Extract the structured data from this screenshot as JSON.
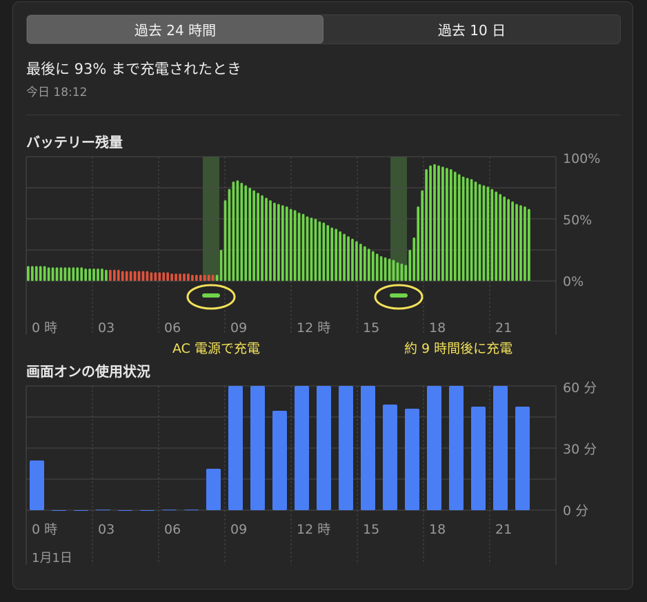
{
  "tabs": [
    {
      "label": "過去 24 時間",
      "active": true
    },
    {
      "label": "過去 10 日",
      "active": false
    }
  ],
  "last_charge": {
    "title": "最後に 93% まで充電されたとき",
    "time": "今日 18:12"
  },
  "battery_section": {
    "title": "バッテリー残量"
  },
  "usage_section": {
    "title": "画面オンの使用状況"
  },
  "annotations": {
    "ac_charge": "AC 電源で充電",
    "later_charge": "約 9 時間後に充電"
  },
  "date_label": "1月1日",
  "colors": {
    "battery_normal": "#6fd44a",
    "battery_low": "#e0533c",
    "charging_band": "#3d5a36",
    "usage_bar": "#4a7ef5",
    "highlight": "#f2e15a"
  },
  "chart_data": [
    {
      "type": "bar",
      "title": "バッテリー残量",
      "x_tick_labels": [
        "0 時",
        "03",
        "06",
        "09",
        "12 時",
        "15",
        "18",
        "21"
      ],
      "y_tick_labels": [
        "100%",
        "50%",
        "0%"
      ],
      "ylim": [
        0,
        100
      ],
      "grid": true,
      "charging_periods_hours": [
        [
          8.0,
          8.75
        ],
        [
          16.5,
          17.25
        ]
      ],
      "series": [
        {
          "values": [
            12,
            12,
            12,
            12,
            12,
            11,
            11,
            11,
            11,
            11,
            11,
            11,
            11,
            11,
            10,
            10,
            10,
            10,
            10,
            9,
            9,
            9,
            9,
            8,
            8,
            8,
            8,
            8,
            8,
            8,
            7,
            7,
            7,
            7,
            7,
            6,
            6,
            6,
            6,
            6,
            5,
            5,
            5,
            5,
            5,
            5,
            5,
            25,
            65,
            74,
            80,
            81,
            79,
            77,
            75,
            73,
            71,
            69,
            67,
            65,
            63,
            62,
            61,
            60,
            58,
            57,
            55,
            54,
            52,
            51,
            50,
            48,
            47,
            45,
            43,
            42,
            40,
            38,
            36,
            34,
            32,
            30,
            28,
            26,
            24,
            22,
            20,
            19,
            18,
            17,
            15,
            14,
            13,
            25,
            35,
            60,
            73,
            90,
            93,
            94,
            93,
            92,
            91,
            90,
            88,
            86,
            84,
            83,
            82,
            80,
            78,
            77,
            76,
            74,
            72,
            70,
            68,
            66,
            64,
            62,
            61,
            60,
            58
          ],
          "low_count": 26
        }
      ]
    },
    {
      "type": "bar",
      "title": "画面オンの使用状況",
      "x_tick_labels": [
        "0 時",
        "03",
        "06",
        "09",
        "12 時",
        "15",
        "18",
        "21"
      ],
      "y_tick_labels": [
        "60 分",
        "30 分",
        "0 分"
      ],
      "ylim": [
        0,
        60
      ],
      "grid": true,
      "series": [
        {
          "unit": "分",
          "values": [
            24,
            0,
            0,
            0.3,
            0,
            0,
            0.3,
            0.3,
            20,
            60,
            60,
            48,
            60,
            60,
            60,
            60,
            51,
            49,
            60,
            60,
            50,
            60,
            50
          ]
        }
      ]
    }
  ]
}
